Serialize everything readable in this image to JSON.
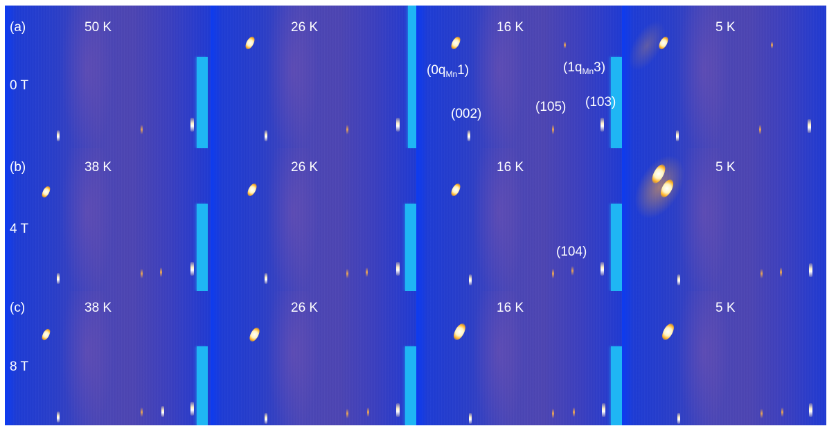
{
  "rows": [
    {
      "letter": "(a)",
      "field": "0 T",
      "temps": [
        "50 K",
        "26 K",
        "16 K",
        "5 K"
      ]
    },
    {
      "letter": "(b)",
      "field": "4 T",
      "temps": [
        "38 K",
        "26 K",
        "16 K",
        "5 K"
      ]
    },
    {
      "letter": "(c)",
      "field": "8 T",
      "temps": [
        "38 K",
        "26 K",
        "16 K",
        "5 K"
      ]
    }
  ],
  "annotations": {
    "q0_prefix": "(0q",
    "q0_sub": "Mn",
    "q0_suffix": "1)",
    "q1_prefix": "(1q",
    "q1_sub": "Mn",
    "q1_suffix": "3)",
    "r002": "(002)",
    "r105": "(105)",
    "r103": "(103)",
    "r104": "(104)"
  },
  "colors": {
    "background": "#1a3bd9",
    "edge_bar": "#1fb6f4",
    "peak": "#ffffff",
    "diffuse": "#4d45b2"
  }
}
